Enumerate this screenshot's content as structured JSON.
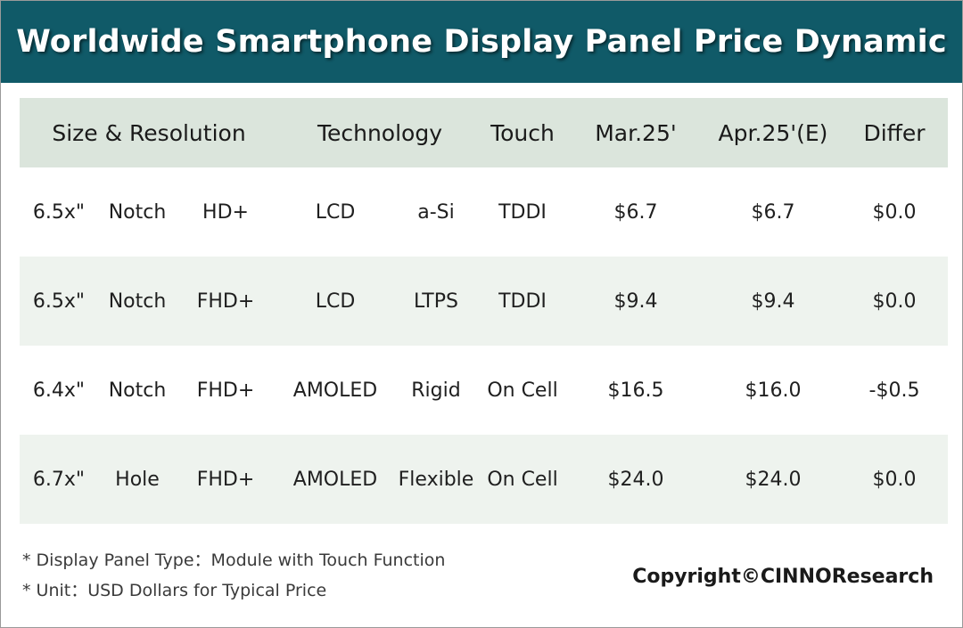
{
  "title": "Worldwide Smartphone Display Panel Price Dynamic",
  "colors": {
    "title_bar": "#105a68",
    "header_row": "#dbe5dc",
    "shaded_row": "#eef3ee",
    "title_text": "#ffffff"
  },
  "table": {
    "headers": {
      "size_resolution": "Size & Resolution",
      "technology": "Technology",
      "touch": "Touch",
      "mar25": "Mar.25'",
      "apr25": "Apr.25'(E)",
      "differ": "Differ"
    },
    "rows": [
      {
        "size": "6.5x\"",
        "shape": "Notch",
        "resolution": "HD+",
        "tech": "LCD",
        "backplane": "a-Si",
        "touch": "TDDI",
        "mar25": "$6.7",
        "apr25": "$6.7",
        "differ": "$0.0"
      },
      {
        "size": "6.5x\"",
        "shape": "Notch",
        "resolution": "FHD+",
        "tech": "LCD",
        "backplane": "LTPS",
        "touch": "TDDI",
        "mar25": "$9.4",
        "apr25": "$9.4",
        "differ": "$0.0"
      },
      {
        "size": "6.4x\"",
        "shape": "Notch",
        "resolution": "FHD+",
        "tech": "AMOLED",
        "backplane": "Rigid",
        "touch": "On Cell",
        "mar25": "$16.5",
        "apr25": "$16.0",
        "differ": "-$0.5"
      },
      {
        "size": "6.7x\"",
        "shape": "Hole",
        "resolution": "FHD+",
        "tech": "AMOLED",
        "backplane": "Flexible",
        "touch": "On Cell",
        "mar25": "$24.0",
        "apr25": "$24.0",
        "differ": "$0.0"
      }
    ]
  },
  "footnotes": {
    "panel_type": "* Display Panel Type：Module with Touch Function",
    "unit": "* Unit：USD Dollars for Typical Price"
  },
  "copyright": "Copyright©CINNOResearch"
}
